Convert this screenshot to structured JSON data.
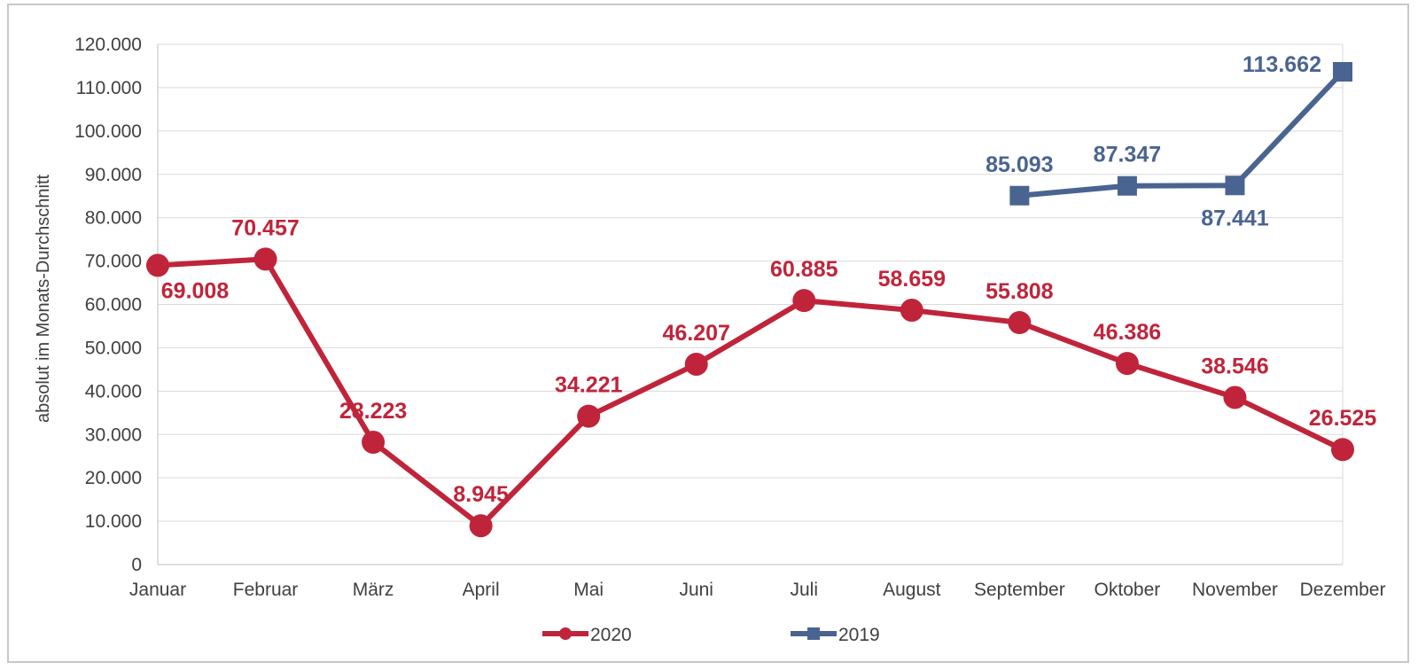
{
  "chart_data": {
    "type": "line",
    "ylabel": "absolut im Monats-Durchschnitt",
    "ylim": [
      0,
      120000
    ],
    "yticks": [
      0,
      10000,
      20000,
      30000,
      40000,
      50000,
      60000,
      70000,
      80000,
      90000,
      100000,
      110000,
      120000
    ],
    "ytick_labels": [
      "0",
      "10.000",
      "20.000",
      "30.000",
      "40.000",
      "50.000",
      "60.000",
      "70.000",
      "80.000",
      "90.000",
      "100.000",
      "110.000",
      "120.000"
    ],
    "categories": [
      "Januar",
      "Februar",
      "März",
      "April",
      "Mai",
      "Juni",
      "Juli",
      "August",
      "September",
      "Oktober",
      "November",
      "Dezember"
    ],
    "grid": true,
    "legend_position": "bottom",
    "series": [
      {
        "name": "2020",
        "color": "#c0243a",
        "marker": "circle",
        "values": [
          69008,
          70457,
          28223,
          8945,
          34221,
          46207,
          60885,
          58659,
          55808,
          46386,
          38546,
          26525
        ],
        "labels": [
          "69.008",
          "70.457",
          "28.223",
          "8.945",
          "34.221",
          "46.207",
          "60.885",
          "58.659",
          "55.808",
          "46.386",
          "38.546",
          "26.525"
        ],
        "label_positions": [
          "below",
          "above",
          "above",
          "above",
          "above",
          "above",
          "above",
          "above",
          "above",
          "above",
          "above",
          "above"
        ]
      },
      {
        "name": "2019",
        "color": "#4a6491",
        "marker": "square",
        "values": [
          null,
          null,
          null,
          null,
          null,
          null,
          null,
          null,
          85093,
          87347,
          87441,
          113662
        ],
        "labels": [
          null,
          null,
          null,
          null,
          null,
          null,
          null,
          null,
          "85.093",
          "87.347",
          "87.441",
          "113.662"
        ],
        "label_positions": [
          null,
          null,
          null,
          null,
          null,
          null,
          null,
          null,
          "above",
          "above",
          "below",
          "left"
        ]
      }
    ]
  }
}
